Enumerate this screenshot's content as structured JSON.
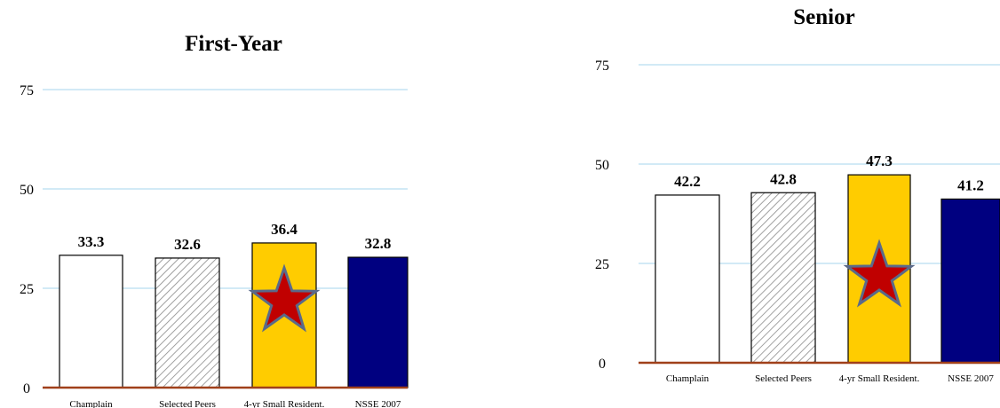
{
  "chart_data": [
    {
      "type": "bar",
      "title": "First-Year",
      "categories": [
        "Champlain",
        "Selected Peers",
        "4-yr Small Resident.",
        "NSSE 2007"
      ],
      "values": [
        33.3,
        32.6,
        36.4,
        32.8
      ],
      "value_labels": [
        "33.3",
        "32.6",
        "36.4",
        "32.8"
      ],
      "yticks": [
        "0",
        "25",
        "50",
        "75"
      ],
      "ylim": [
        0,
        75
      ],
      "grid": true,
      "highlight_index": 2,
      "highlight_marker": "star-icon"
    },
    {
      "type": "bar",
      "title": "Senior",
      "categories": [
        "Champlain",
        "Selected Peers",
        "4-yr Small Resident.",
        "NSSE 2007"
      ],
      "values": [
        42.2,
        42.8,
        47.3,
        41.2
      ],
      "value_labels": [
        "42.2",
        "42.8",
        "47.3",
        "41.2"
      ],
      "yticks": [
        "0",
        "25",
        "50",
        "75"
      ],
      "ylim": [
        0,
        75
      ],
      "grid": true,
      "highlight_index": 2,
      "highlight_marker": "star-icon"
    }
  ],
  "colors": {
    "champlain": "#ffffff",
    "peers_hatch": "#8a8a8a",
    "highlight": "#ffcc00",
    "nsse": "#000080",
    "grid": "#b7def0",
    "baseline": "#a0401a",
    "star_fill": "#c00000",
    "star_stroke": "#5a6a8a"
  }
}
